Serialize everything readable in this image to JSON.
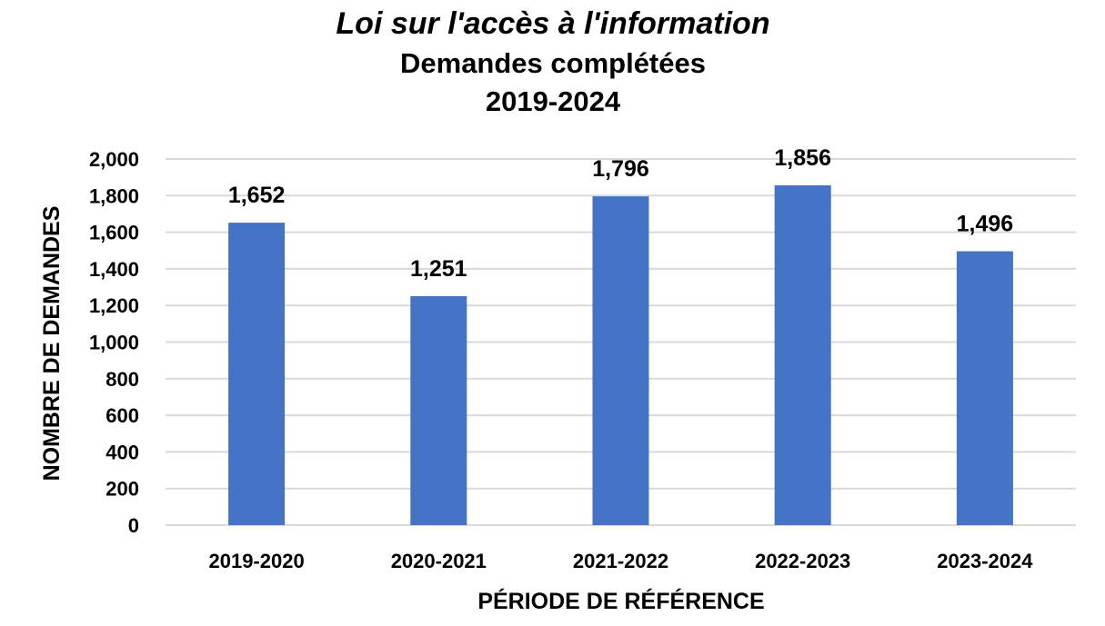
{
  "chart_data": {
    "type": "bar",
    "title_lines": [
      "Loi sur l'accès à l'information",
      "Demandes complétées",
      "2019-2024"
    ],
    "xlabel": "PÉRIODE DE RÉFÉRENCE",
    "ylabel": "NOMBRE DE DEMANDES",
    "categories": [
      "2019-2020",
      "2020-2021",
      "2021-2022",
      "2022-2023",
      "2023-2024"
    ],
    "values": [
      1652,
      1251,
      1796,
      1856,
      1496
    ],
    "data_labels": [
      "1,652",
      "1,251",
      "1,796",
      "1,856",
      "1,496"
    ],
    "ylim": [
      0,
      2000
    ],
    "y_ticks": [
      0,
      200,
      400,
      600,
      800,
      1000,
      1200,
      1400,
      1600,
      1800,
      2000
    ],
    "y_tick_labels": [
      "0",
      "200",
      "400",
      "600",
      "800",
      "1,000",
      "1,200",
      "1,400",
      "1,600",
      "1,800",
      "2,000"
    ],
    "bar_color": "#4472c4",
    "grid": true,
    "legend": "none"
  }
}
